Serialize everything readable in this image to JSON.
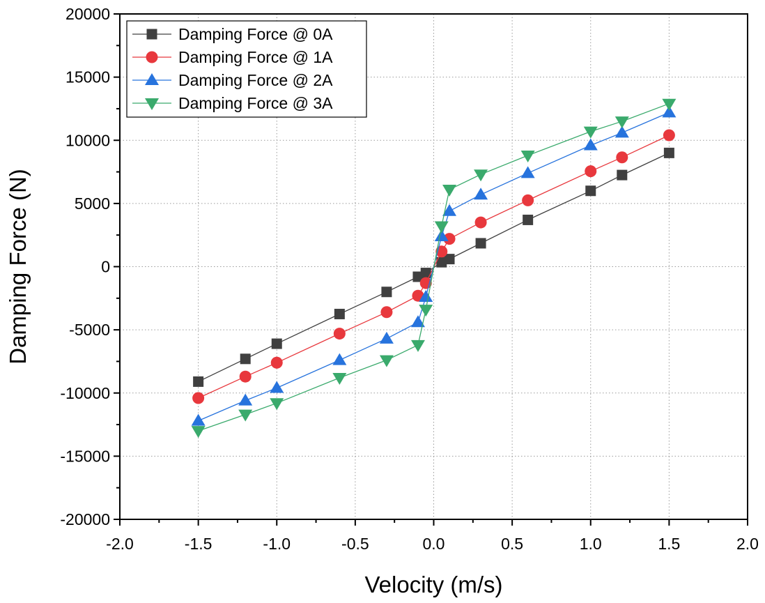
{
  "chart_data": {
    "type": "line",
    "xlabel": "Velocity (m/s)",
    "ylabel": "Damping Force (N)",
    "xlim": [
      -2.0,
      2.0
    ],
    "ylim": [
      -20000,
      20000
    ],
    "xticks": [
      -2.0,
      -1.5,
      -1.0,
      -0.5,
      0.0,
      0.5,
      1.0,
      1.5,
      2.0
    ],
    "xtick_labels": [
      "-2.0",
      "-1.5",
      "-1.0",
      "-0.5",
      "0.0",
      "0.5",
      "1.0",
      "1.5",
      "2.0"
    ],
    "yticks": [
      -20000,
      -15000,
      -10000,
      -5000,
      0,
      5000,
      10000,
      15000,
      20000
    ],
    "ytick_labels": [
      "-20000",
      "-15000",
      "-10000",
      "-5000",
      "0",
      "5000",
      "10000",
      "15000",
      "20000"
    ],
    "grid": true,
    "legend_position": "top-left",
    "x": [
      -1.5,
      -1.2,
      -1.0,
      -0.6,
      -0.3,
      -0.1,
      -0.05,
      0.05,
      0.1,
      0.3,
      0.6,
      1.0,
      1.2,
      1.5
    ],
    "series": [
      {
        "name": "Damping Force @ 0A",
        "marker": "square",
        "color": "#404040",
        "values": [
          -9100,
          -7300,
          -6100,
          -3750,
          -2000,
          -800,
          -500,
          350,
          600,
          1850,
          3700,
          6000,
          7250,
          9000
        ]
      },
      {
        "name": "Damping Force @ 1A",
        "marker": "circle",
        "color": "#e8383d",
        "values": [
          -10400,
          -8700,
          -7600,
          -5300,
          -3600,
          -2300,
          -1300,
          1200,
          2200,
          3500,
          5250,
          7550,
          8650,
          10400
        ]
      },
      {
        "name": "Damping Force @ 2A",
        "marker": "triangle-up",
        "color": "#2773dd",
        "values": [
          -12200,
          -10600,
          -9600,
          -7400,
          -5700,
          -4400,
          -2400,
          2400,
          4400,
          5700,
          7400,
          9600,
          10600,
          12200
        ]
      },
      {
        "name": "Damping Force @ 3A",
        "marker": "triangle-down",
        "color": "#3aaa6c",
        "values": [
          -13000,
          -11700,
          -10800,
          -8800,
          -7400,
          -6200,
          -3400,
          3200,
          6100,
          7300,
          8800,
          10700,
          11500,
          12900
        ]
      }
    ]
  }
}
